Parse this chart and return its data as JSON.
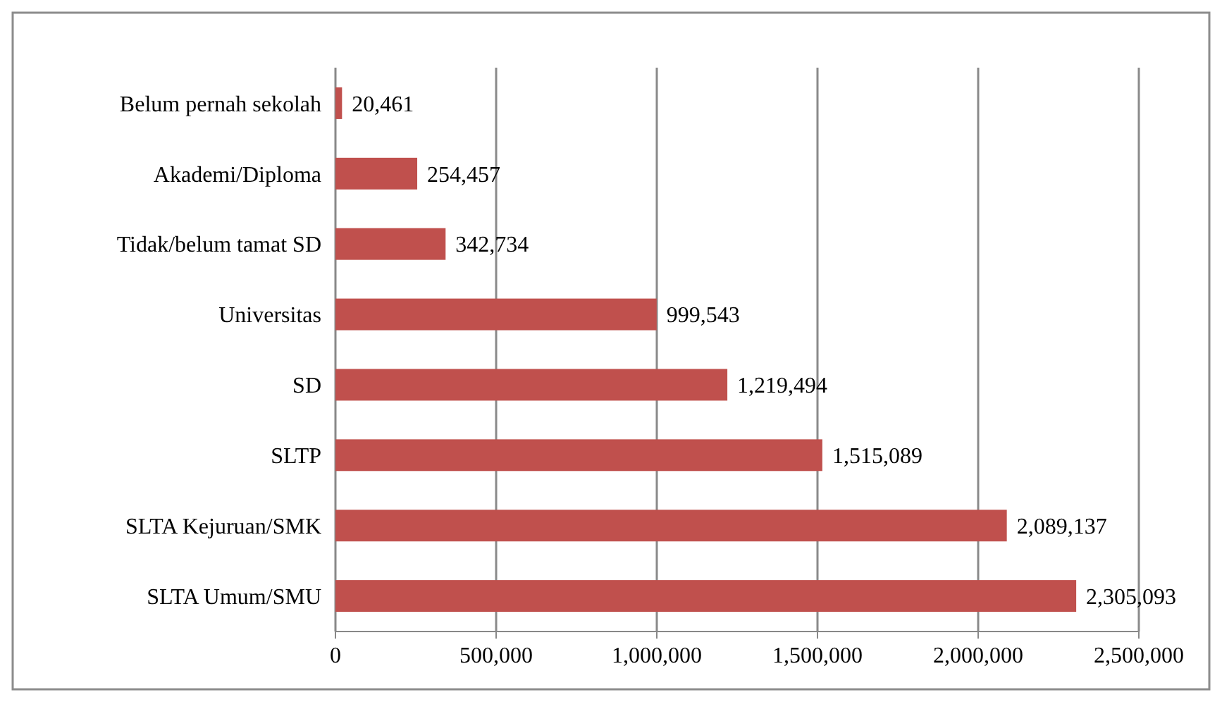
{
  "chart_data": {
    "type": "bar",
    "orientation": "horizontal",
    "categories": [
      "Belum pernah sekolah",
      "Akademi/Diploma",
      "Tidak/belum tamat SD",
      "Universitas",
      "SD",
      "SLTP",
      "SLTA Kejuruan/SMK",
      "SLTA Umum/SMU"
    ],
    "values": [
      20461,
      254457,
      342734,
      999543,
      1219494,
      1515089,
      2089137,
      2305093
    ],
    "color": "#c0504d",
    "xlim": [
      0,
      2500000
    ],
    "xticks": [
      0,
      {
        "value": 500000,
        "label": "500,000"
      },
      {
        "value": 1000000,
        "label": "1,000,000"
      },
      {
        "value": 1500000,
        "label": "1,500,000"
      },
      {
        "value": 2000000,
        "label": "2,000,000"
      },
      {
        "value": 2500000,
        "label": "2,500,000"
      }
    ],
    "value_labels": [
      "20,461",
      "254,457",
      "342,734",
      "999,543",
      "1,219,494",
      "1,515,089",
      "2,089,137",
      "2,305,093"
    ],
    "grid": "x"
  }
}
